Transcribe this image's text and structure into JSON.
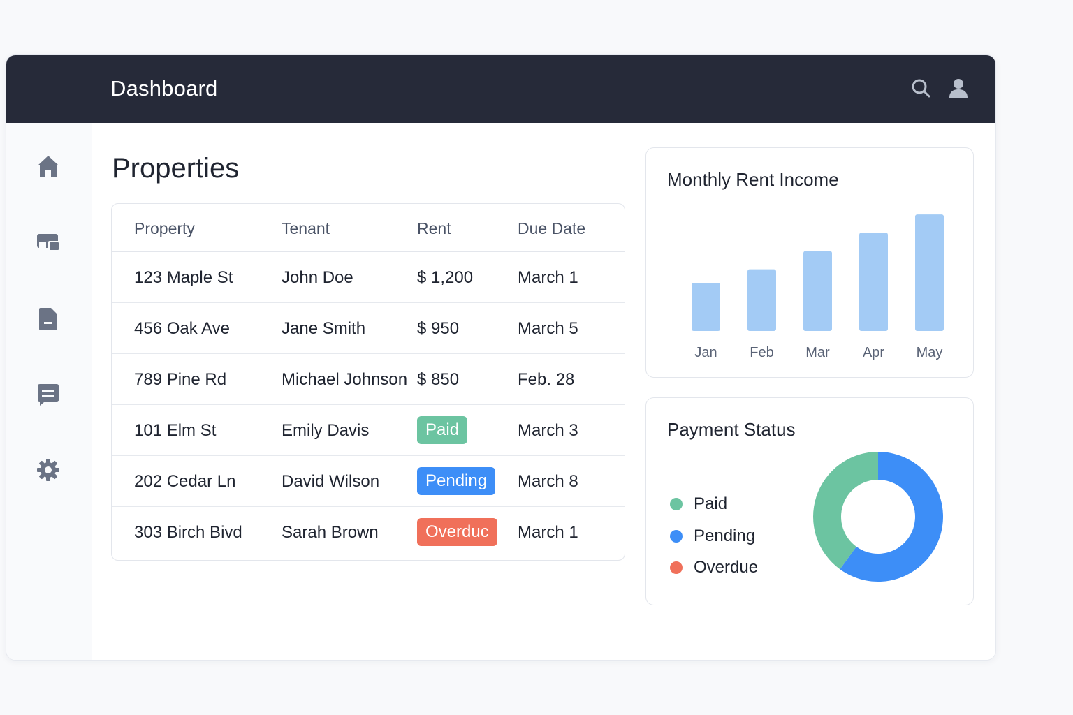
{
  "header": {
    "title": "Dashboard"
  },
  "colors": {
    "topbar": "#262a39",
    "paid": "#6cc4a1",
    "pending": "#3d8ef7",
    "overdue": "#f0705a",
    "bar": "#a3cbf5"
  },
  "sidebar": {
    "items": [
      {
        "name": "home-icon"
      },
      {
        "name": "properties-icon"
      },
      {
        "name": "document-icon"
      },
      {
        "name": "messages-icon"
      },
      {
        "name": "gear-icon"
      }
    ]
  },
  "main": {
    "title": "Properties",
    "table": {
      "headers": [
        "Property",
        "Tenant",
        "Rent",
        "Due Date"
      ],
      "rows": [
        {
          "property": "123 Maple St",
          "tenant": "John Doe",
          "rent": "$ 1,200",
          "due": "March 1"
        },
        {
          "property": "456 Oak Ave",
          "tenant": "Jane Smith",
          "rent": "$ 950",
          "due": "March 5"
        },
        {
          "property": "789 Pine Rd",
          "tenant": "Michael Johnson",
          "rent": "$ 850",
          "due": "Feb. 28"
        },
        {
          "property": "101 Elm St",
          "tenant": "Emily Davis",
          "badge": "Paid",
          "status": "paid",
          "due": "March 3"
        },
        {
          "property": "202 Cedar Ln",
          "tenant": "David Wilson",
          "badge": "Pending",
          "status": "pending",
          "due": "March 8"
        },
        {
          "property": "303 Birch Bivd",
          "tenant": "Sarah Brown",
          "badge": "Overduc",
          "status": "overdue",
          "due": "March 1"
        }
      ]
    }
  },
  "rent_card": {
    "title": "Monthly Rent Income"
  },
  "payment_card": {
    "title": "Payment Status",
    "legend": [
      {
        "label": "Paid",
        "status": "paid"
      },
      {
        "label": "Pending",
        "status": "pending"
      },
      {
        "label": "Overdue",
        "status": "overdue"
      }
    ]
  },
  "chart_data": [
    {
      "type": "bar",
      "title": "Monthly Rent Income",
      "categories": [
        "Jan",
        "Feb",
        "Mar",
        "Apr",
        "May"
      ],
      "values": [
        42,
        54,
        70,
        86,
        102
      ],
      "ylim": [
        0,
        110
      ],
      "grid": false
    },
    {
      "type": "pie",
      "title": "Payment Status",
      "labels": [
        "Paid",
        "Pending",
        "Overdue"
      ],
      "values": [
        40,
        60,
        0
      ],
      "donut": true,
      "legend": "left"
    }
  ]
}
